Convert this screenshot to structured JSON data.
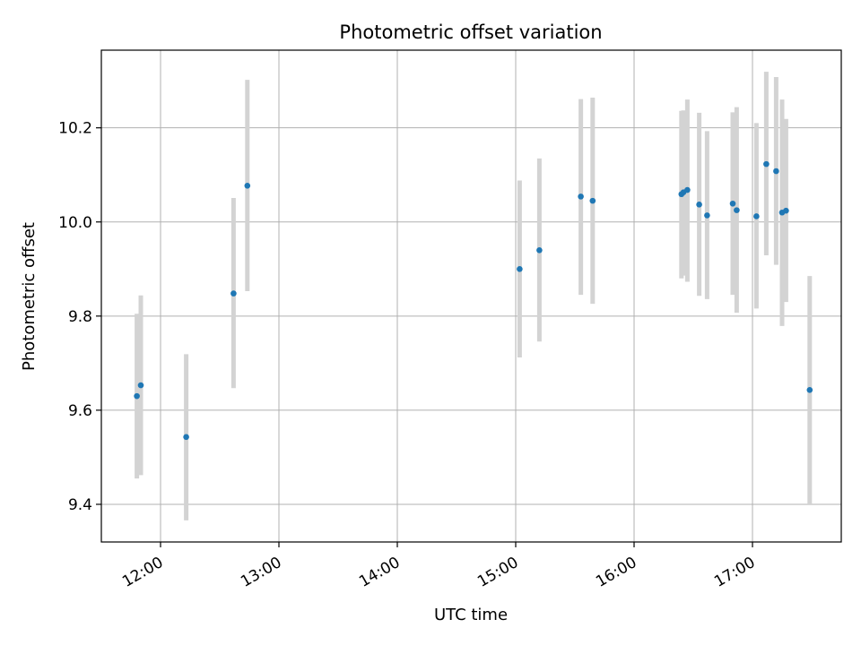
{
  "chart_data": {
    "type": "scatter",
    "title": "Photometric offset variation",
    "xlabel": "UTC time",
    "ylabel": "Photometric offset",
    "x_ticks": [
      "12:00",
      "13:00",
      "14:00",
      "15:00",
      "16:00",
      "17:00"
    ],
    "x_tick_values": [
      720,
      780,
      840,
      900,
      960,
      1020
    ],
    "y_ticks": [
      "9.4",
      "9.6",
      "9.8",
      "10.0",
      "10.2"
    ],
    "y_tick_values": [
      9.4,
      9.6,
      9.8,
      10.0,
      10.2
    ],
    "xlim": [
      "11:30",
      "17:45"
    ],
    "ylim": [
      9.32,
      10.365
    ],
    "grid": true,
    "colors": {
      "point": "#1f77b4",
      "errorbar": "#d3d3d3",
      "grid": "#b0b0b0"
    },
    "points": [
      {
        "time": "11:48",
        "y": 9.63,
        "err_low": 9.455,
        "err_high": 9.805
      },
      {
        "time": "11:50",
        "y": 9.653,
        "err_low": 9.462,
        "err_high": 9.844
      },
      {
        "time": "12:13",
        "y": 9.543,
        "err_low": 9.366,
        "err_high": 9.719
      },
      {
        "time": "12:37",
        "y": 9.848,
        "err_low": 9.647,
        "err_high": 10.051
      },
      {
        "time": "12:44",
        "y": 10.077,
        "err_low": 9.853,
        "err_high": 10.302
      },
      {
        "time": "15:02",
        "y": 9.9,
        "err_low": 9.712,
        "err_high": 10.088
      },
      {
        "time": "15:12",
        "y": 9.94,
        "err_low": 9.746,
        "err_high": 10.135
      },
      {
        "time": "15:33",
        "y": 10.054,
        "err_low": 9.845,
        "err_high": 10.261
      },
      {
        "time": "15:39",
        "y": 10.045,
        "err_low": 9.826,
        "err_high": 10.264
      },
      {
        "time": "16:24",
        "y": 10.059,
        "err_low": 9.88,
        "err_high": 10.236
      },
      {
        "time": "16:25",
        "y": 10.063,
        "err_low": 9.886,
        "err_high": 10.237
      },
      {
        "time": "16:27",
        "y": 10.068,
        "err_low": 9.873,
        "err_high": 10.26
      },
      {
        "time": "16:33",
        "y": 10.037,
        "err_low": 9.843,
        "err_high": 10.232
      },
      {
        "time": "16:37",
        "y": 10.014,
        "err_low": 9.836,
        "err_high": 10.193
      },
      {
        "time": "16:50",
        "y": 10.039,
        "err_low": 9.845,
        "err_high": 10.233
      },
      {
        "time": "16:52",
        "y": 10.025,
        "err_low": 9.807,
        "err_high": 10.244
      },
      {
        "time": "17:02",
        "y": 10.012,
        "err_low": 9.816,
        "err_high": 10.21
      },
      {
        "time": "17:07",
        "y": 10.123,
        "err_low": 9.929,
        "err_high": 10.319
      },
      {
        "time": "17:12",
        "y": 10.108,
        "err_low": 9.909,
        "err_high": 10.308
      },
      {
        "time": "17:15",
        "y": 10.02,
        "err_low": 9.779,
        "err_high": 10.26
      },
      {
        "time": "17:17",
        "y": 10.024,
        "err_low": 9.83,
        "err_high": 10.219
      },
      {
        "time": "17:29",
        "y": 9.643,
        "err_low": 9.4,
        "err_high": 9.885
      }
    ]
  }
}
